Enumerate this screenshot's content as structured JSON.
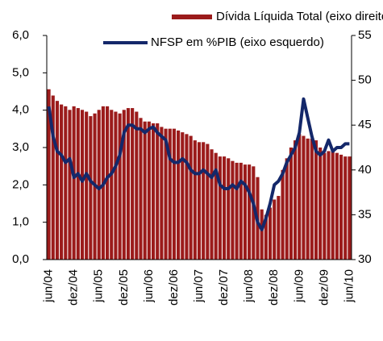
{
  "chart_data": {
    "type": "bar",
    "categories": [
      "jun/04",
      null,
      null,
      null,
      null,
      null,
      "dez/04",
      null,
      null,
      null,
      null,
      null,
      "jun/05",
      null,
      null,
      null,
      null,
      null,
      "dez/05",
      null,
      null,
      null,
      null,
      null,
      "jun/06",
      null,
      null,
      null,
      null,
      null,
      "dez/06",
      null,
      null,
      null,
      null,
      null,
      "jun/07",
      null,
      null,
      null,
      null,
      null,
      "dez/07",
      null,
      null,
      null,
      null,
      null,
      "jun/08",
      null,
      null,
      null,
      null,
      null,
      "dez/08",
      null,
      null,
      null,
      null,
      null,
      "jun/09",
      null,
      null,
      null,
      null,
      null,
      "dez/09",
      null,
      null,
      null,
      null,
      null,
      "jun/10"
    ],
    "series": [
      {
        "name": "Dívida Líquida Total (eixo direito)",
        "type": "bar",
        "axis": "y2",
        "color": "#9b1b1b",
        "values": [
          49.0,
          48.3,
          47.7,
          47.3,
          47.1,
          46.7,
          47.1,
          46.9,
          46.7,
          46.5,
          46.0,
          46.3,
          46.7,
          47.1,
          47.1,
          46.7,
          46.5,
          46.3,
          46.7,
          46.9,
          46.9,
          46.5,
          45.8,
          45.4,
          45.4,
          45.2,
          45.2,
          44.8,
          44.6,
          44.6,
          44.6,
          44.4,
          44.2,
          44.0,
          43.8,
          43.3,
          43.1,
          43.1,
          42.9,
          42.3,
          41.9,
          41.5,
          41.5,
          41.3,
          41.0,
          40.8,
          40.8,
          40.6,
          40.6,
          40.4,
          39.2,
          35.6,
          35.0,
          35.8,
          36.7,
          37.1,
          40.0,
          41.3,
          42.5,
          43.3,
          44.0,
          43.8,
          43.5,
          43.5,
          43.3,
          42.5,
          41.9,
          42.1,
          42.1,
          41.9,
          41.7,
          41.5,
          41.5
        ]
      },
      {
        "name": "NFSP em %PIB (eixo esquerdo)",
        "type": "line",
        "color": "#14286a",
        "values": [
          4.1,
          3.3,
          2.9,
          2.8,
          2.6,
          2.7,
          2.2,
          2.3,
          2.1,
          2.3,
          2.1,
          2.0,
          1.9,
          2.0,
          2.2,
          2.3,
          2.5,
          2.8,
          3.4,
          3.6,
          3.6,
          3.5,
          3.5,
          3.4,
          3.5,
          3.55,
          3.4,
          3.3,
          3.2,
          2.7,
          2.6,
          2.6,
          2.7,
          2.6,
          2.4,
          2.3,
          2.3,
          2.4,
          2.3,
          2.2,
          2.4,
          2.0,
          1.9,
          1.9,
          2.0,
          1.9,
          2.1,
          2.0,
          1.8,
          1.5,
          1.0,
          0.8,
          1.1,
          1.5,
          2.0,
          2.1,
          2.3,
          2.6,
          2.8,
          3.0,
          3.4,
          4.3,
          3.8,
          3.3,
          2.9,
          2.8,
          2.9,
          3.2,
          2.9,
          3.0,
          3.0,
          3.1,
          3.1
        ]
      }
    ],
    "ylim": [
      0,
      6
    ],
    "yticks": [
      {
        "value": 0,
        "label": "0,0"
      },
      {
        "value": 1,
        "label": "1,0"
      },
      {
        "value": 2,
        "label": "2,0"
      },
      {
        "value": 3,
        "label": "3,0"
      },
      {
        "value": 4,
        "label": "4,0"
      },
      {
        "value": 5,
        "label": "5,0"
      },
      {
        "value": 6,
        "label": "6,0"
      }
    ],
    "y2lim": [
      30,
      55
    ],
    "y2ticks": [
      30,
      35,
      40,
      45,
      50,
      55
    ],
    "grid": false
  }
}
